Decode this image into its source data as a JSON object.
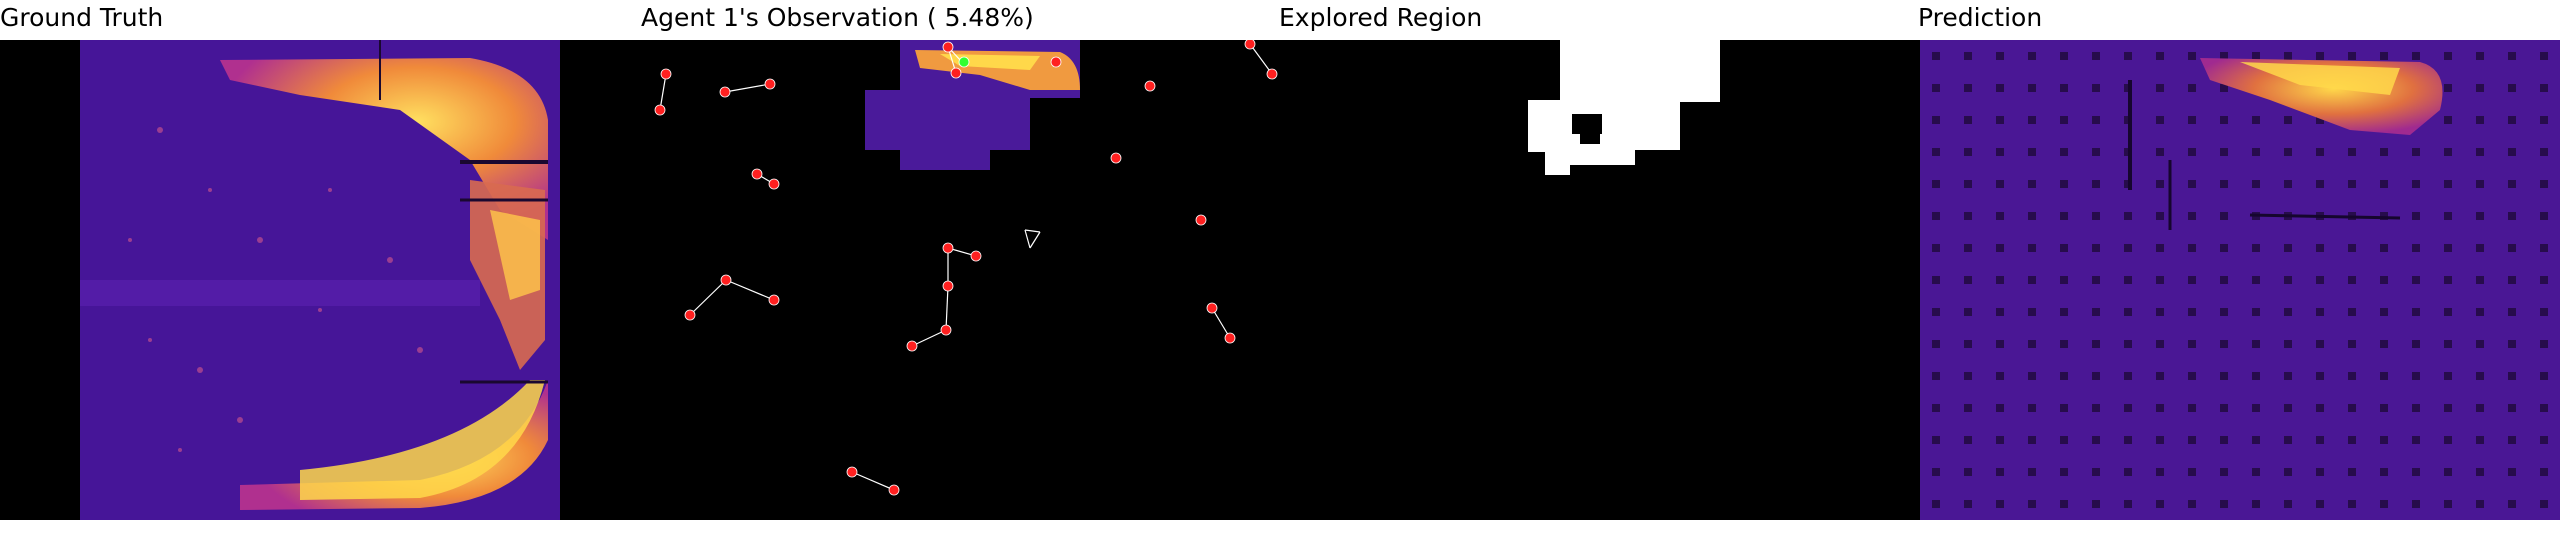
{
  "panels": {
    "ground_truth": {
      "title": "Ground Truth"
    },
    "observation": {
      "title": "Agent 1's Observation ( 5.48%)"
    },
    "explored": {
      "title": "Explored Region"
    },
    "prediction": {
      "title": "Prediction"
    }
  },
  "colors": {
    "background": "#000000",
    "heat_low": "#3a0f8a",
    "heat_mid": "#b0308f",
    "heat_high": "#ffd44a",
    "agent_marker": "#ff2020",
    "current_agent": "#30ff30",
    "explored_mask": "#ffffff"
  }
}
